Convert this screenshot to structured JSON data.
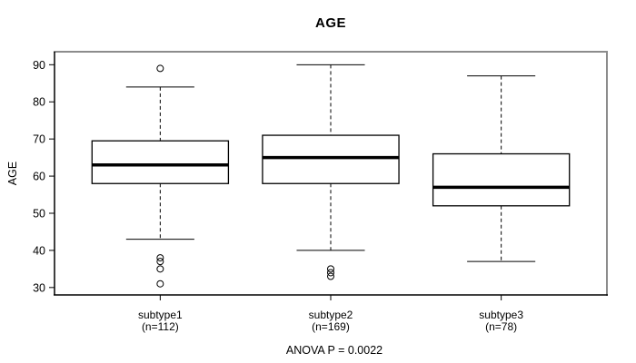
{
  "chart_data": {
    "type": "box",
    "title": "AGE",
    "ylabel": "AGE",
    "annotation": "ANOVA P = 0.0022",
    "yticks": [
      30,
      40,
      50,
      60,
      70,
      80,
      90
    ],
    "ylim": [
      28,
      93.5
    ],
    "grid": false,
    "legend": "none",
    "categories": [
      "subtype1",
      "subtype2",
      "subtype3"
    ],
    "groups": [
      {
        "label": "subtype1",
        "n_label": "(n=112)",
        "n": 112,
        "whisker_low": 43,
        "q1": 58,
        "median": 63,
        "q3": 69.5,
        "whisker_high": 84,
        "outliers": [
          89,
          38,
          37,
          35,
          31
        ]
      },
      {
        "label": "subtype2",
        "n_label": "(n=169)",
        "n": 169,
        "whisker_low": 40,
        "q1": 58,
        "median": 65,
        "q3": 71,
        "whisker_high": 90,
        "outliers": [
          35,
          34,
          33
        ]
      },
      {
        "label": "subtype3",
        "n_label": "(n=78)",
        "n": 78,
        "whisker_low": 37,
        "q1": 52,
        "median": 57,
        "q3": 66,
        "whisker_high": 87,
        "outliers": []
      }
    ],
    "colors": {
      "box_stroke": "#000000",
      "median": "#000000",
      "whisker": "#000000",
      "frame_top_right": "#8c8c8c",
      "axis": "#000000",
      "background": "#ffffff",
      "text": "#000000"
    }
  }
}
